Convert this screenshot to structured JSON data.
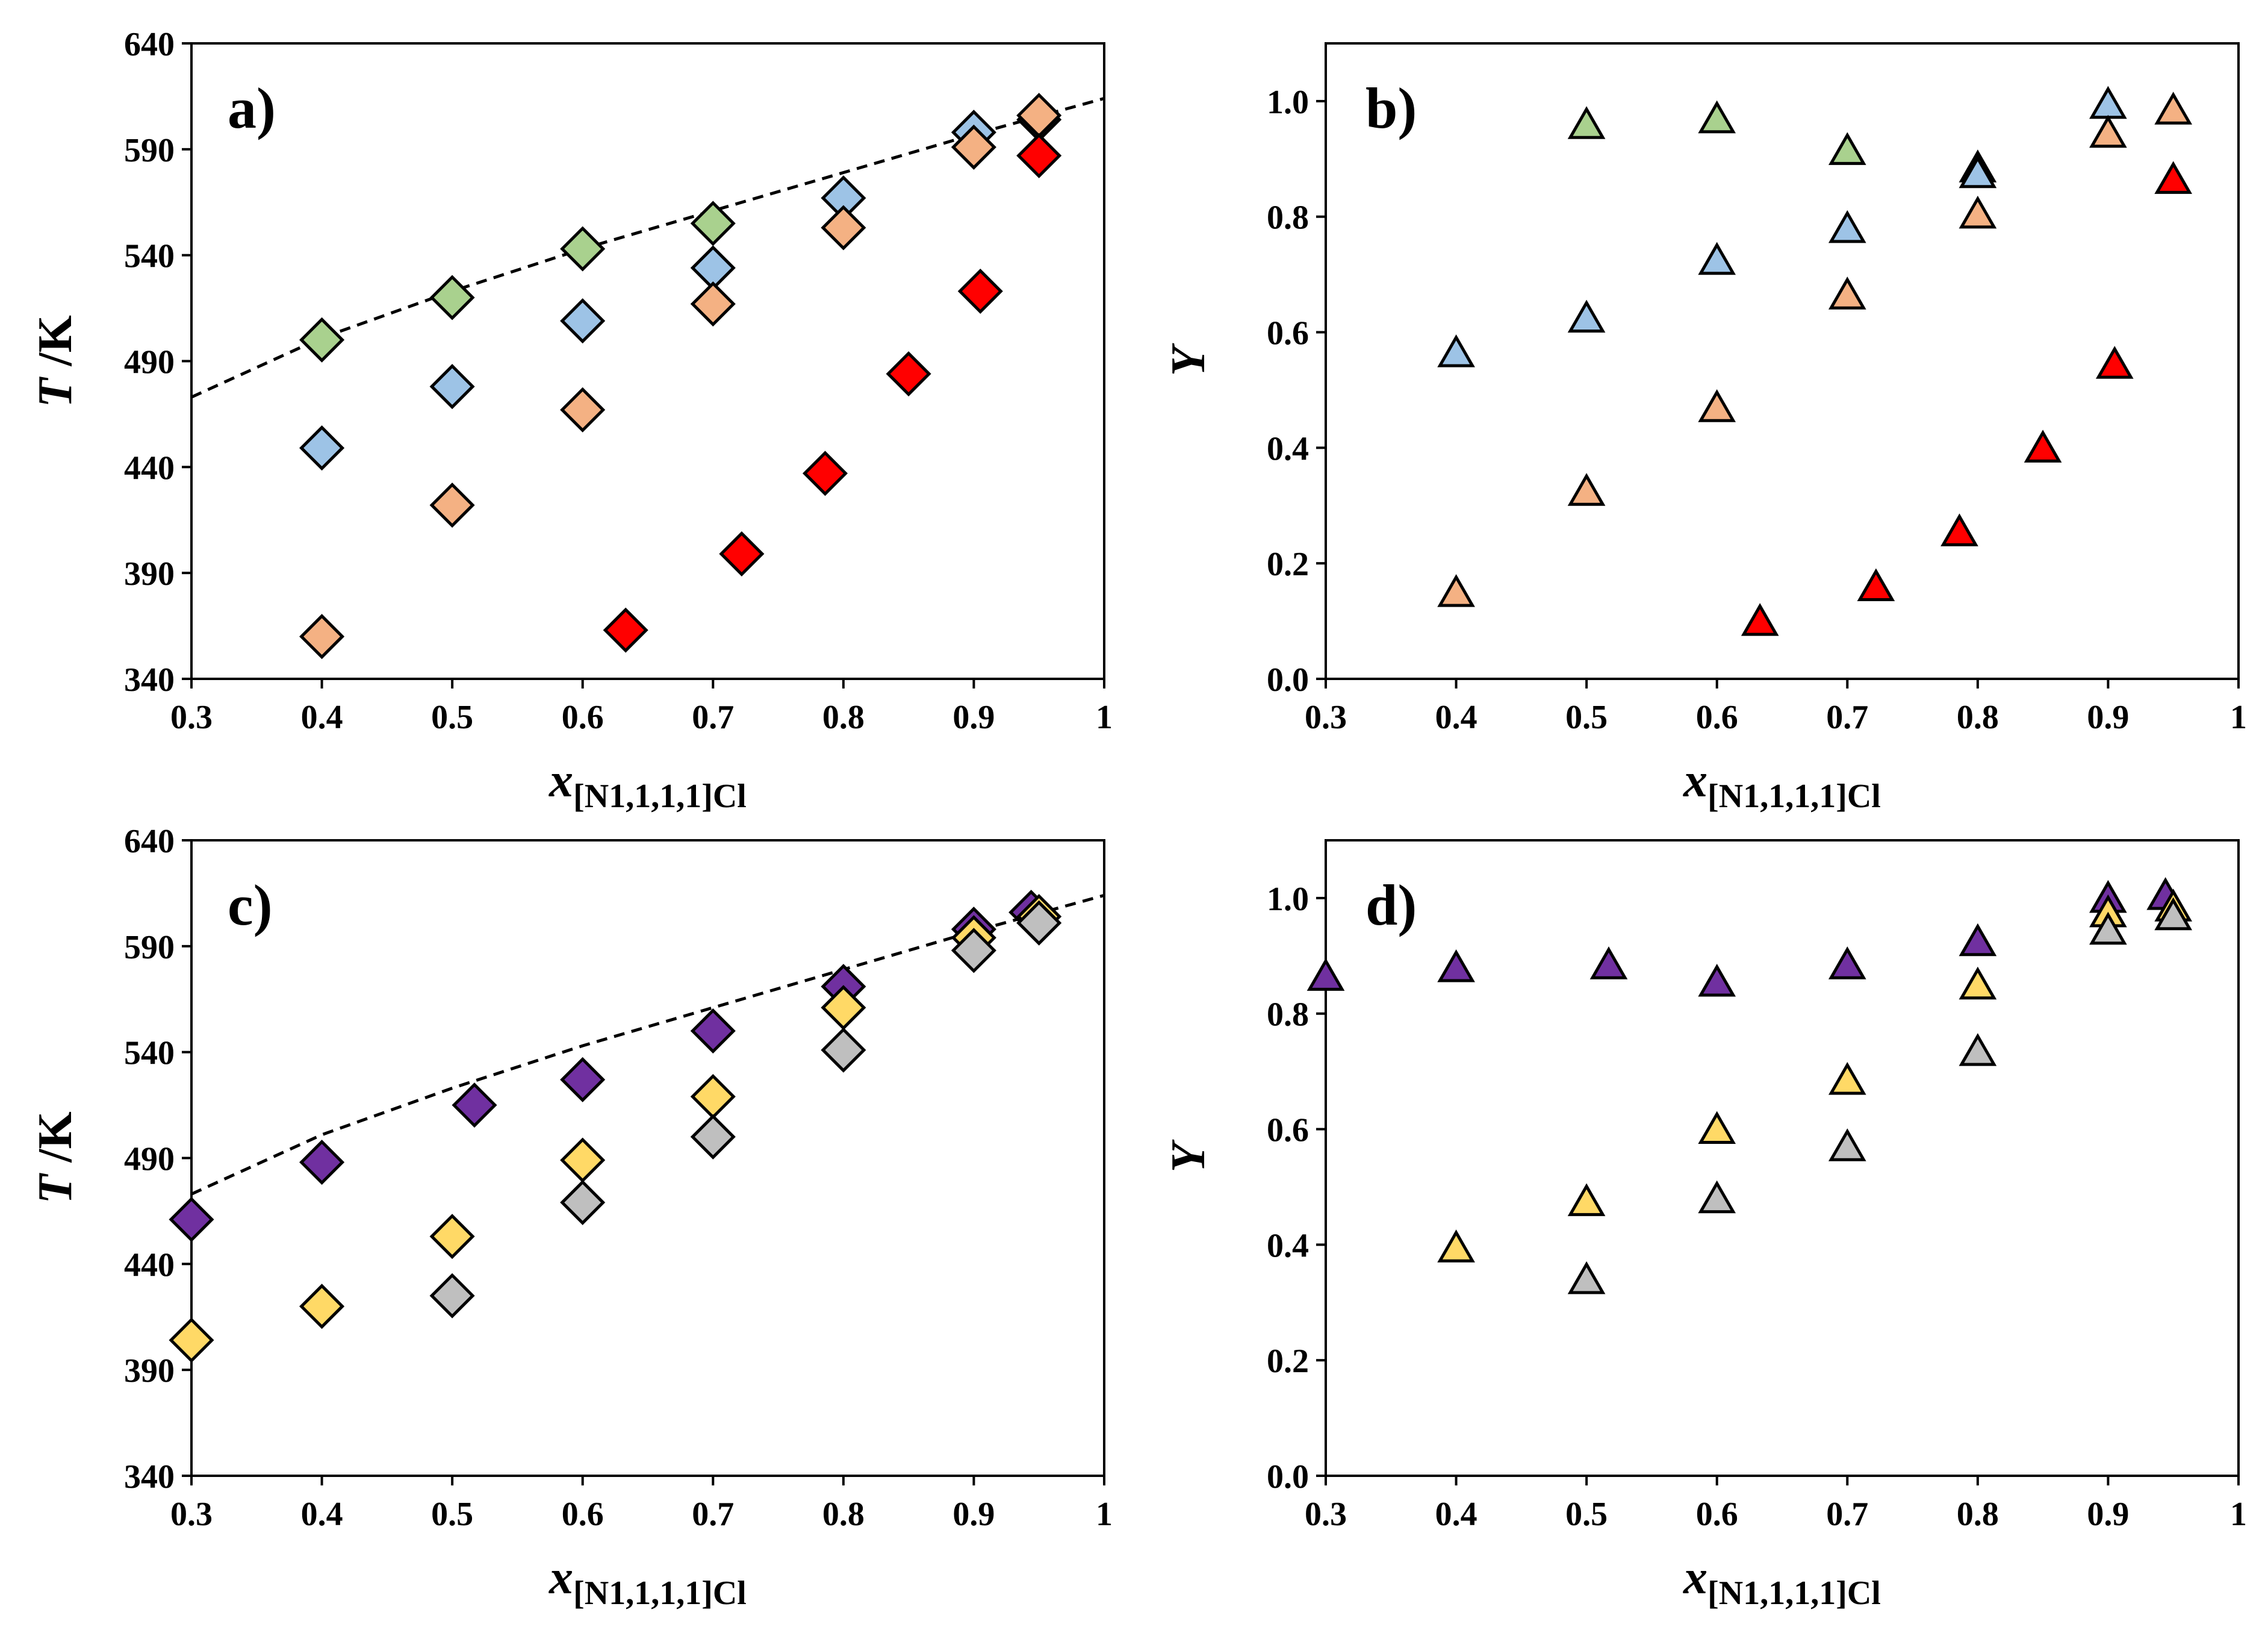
{
  "figure": {
    "panels": [
      {
        "label": "a)",
        "ylabel_italic": "T",
        "ylabel_rest": " /K",
        "xlabel_italic": "x",
        "xlabel_sub": "[N1,1,1,1]Cl"
      },
      {
        "label": "b)",
        "ylabel_italic": "Y",
        "ylabel_rest": "",
        "xlabel_italic": "x",
        "xlabel_sub": "[N1,1,1,1]Cl"
      },
      {
        "label": "c)",
        "ylabel_italic": "T",
        "ylabel_rest": " /K",
        "xlabel_italic": "x",
        "xlabel_sub": "[N1,1,1,1]Cl"
      },
      {
        "label": "d)",
        "ylabel_italic": "Y",
        "ylabel_rest": "",
        "xlabel_italic": "x",
        "xlabel_sub": "[N1,1,1,1]Cl"
      }
    ]
  },
  "chart_data": [
    {
      "panel": "a)",
      "type": "scatter",
      "marker": "diamond",
      "xlabel": "x[N1,1,1,1]Cl",
      "ylabel": "T /K",
      "xlim": [
        0.3,
        1
      ],
      "xticks": [
        0.3,
        0.4,
        0.5,
        0.6,
        0.7,
        0.8,
        0.9,
        1
      ],
      "xtick_labels": [
        "0.3",
        "0.4",
        "0.5",
        "0.6",
        "0.7",
        "0.8",
        "0.9",
        "1"
      ],
      "ylim": [
        340,
        640
      ],
      "yticks": [
        340,
        390,
        440,
        490,
        540,
        590,
        640
      ],
      "ytick_labels": [
        "340",
        "390",
        "440",
        "490",
        "540",
        "590",
        "640"
      ],
      "dashed_curve": {
        "x": [
          0.3,
          0.4,
          0.5,
          0.6,
          0.7,
          0.8,
          0.9,
          1.0
        ],
        "y": [
          473,
          501,
          523,
          543,
          561,
          579,
          597,
          614
        ]
      },
      "series": [
        {
          "color": "#a9d18e",
          "x": [
            0.4,
            0.5,
            0.6,
            0.7
          ],
          "y": [
            500,
            520,
            543,
            555
          ]
        },
        {
          "color": "#9dc3e6",
          "x": [
            0.4,
            0.5,
            0.6,
            0.7,
            0.8,
            0.9,
            0.95
          ],
          "y": [
            449,
            478,
            509,
            534,
            567,
            598,
            604
          ]
        },
        {
          "color": "#f4b183",
          "x": [
            0.4,
            0.5,
            0.6,
            0.7,
            0.8,
            0.9,
            0.95
          ],
          "y": [
            360,
            422,
            467,
            517,
            553,
            591,
            606
          ]
        },
        {
          "color": "#ff0000",
          "x": [
            0.633,
            0.722,
            0.786,
            0.85,
            0.905,
            0.95
          ],
          "y": [
            363,
            399,
            437,
            484,
            523,
            587
          ]
        }
      ]
    },
    {
      "panel": "b)",
      "type": "scatter",
      "marker": "triangle",
      "xlabel": "x[N1,1,1,1]Cl",
      "ylabel": "Y",
      "xlim": [
        0.3,
        1
      ],
      "xticks": [
        0.3,
        0.4,
        0.5,
        0.6,
        0.7,
        0.8,
        0.9,
        1
      ],
      "xtick_labels": [
        "0.3",
        "0.4",
        "0.5",
        "0.6",
        "0.7",
        "0.8",
        "0.9",
        "1"
      ],
      "ylim": [
        0,
        1.1
      ],
      "yticks": [
        0,
        0.2,
        0.4,
        0.6,
        0.8,
        1.0
      ],
      "ytick_labels": [
        "0.0",
        "0.2",
        "0.4",
        "0.6",
        "0.8",
        "1.0"
      ],
      "series": [
        {
          "color": "#a9d18e",
          "x": [
            0.5,
            0.6,
            0.7,
            0.8
          ],
          "y": [
            0.96,
            0.97,
            0.915,
            0.885
          ]
        },
        {
          "color": "#9dc3e6",
          "x": [
            0.4,
            0.5,
            0.6,
            0.7,
            0.8,
            0.9
          ],
          "y": [
            0.565,
            0.625,
            0.725,
            0.78,
            0.875,
            0.995
          ]
        },
        {
          "color": "#f4b183",
          "x": [
            0.4,
            0.5,
            0.6,
            0.7,
            0.8,
            0.9,
            0.95
          ],
          "y": [
            0.15,
            0.325,
            0.47,
            0.665,
            0.805,
            0.945,
            0.985
          ]
        },
        {
          "color": "#ff0000",
          "x": [
            0.633,
            0.722,
            0.786,
            0.85,
            0.905,
            0.95
          ],
          "y": [
            0.1,
            0.16,
            0.255,
            0.4,
            0.545,
            0.865
          ]
        }
      ]
    },
    {
      "panel": "c)",
      "type": "scatter",
      "marker": "diamond",
      "xlabel": "x[N1,1,1,1]Cl",
      "ylabel": "T /K",
      "xlim": [
        0.3,
        1
      ],
      "xticks": [
        0.3,
        0.4,
        0.5,
        0.6,
        0.7,
        0.8,
        0.9,
        1
      ],
      "xtick_labels": [
        "0.3",
        "0.4",
        "0.5",
        "0.6",
        "0.7",
        "0.8",
        "0.9",
        "1"
      ],
      "ylim": [
        340,
        640
      ],
      "yticks": [
        340,
        390,
        440,
        490,
        540,
        590,
        640
      ],
      "ytick_labels": [
        "340",
        "390",
        "440",
        "490",
        "540",
        "590",
        "640"
      ],
      "dashed_curve": {
        "x": [
          0.3,
          0.4,
          0.5,
          0.6,
          0.7,
          0.8,
          0.9,
          1.0
        ],
        "y": [
          473,
          501,
          523,
          543,
          561,
          579,
          597,
          614
        ]
      },
      "series": [
        {
          "color": "#7030a0",
          "x": [
            0.3,
            0.4,
            0.517,
            0.6,
            0.7,
            0.8,
            0.9,
            0.944
          ],
          "y": [
            461,
            488,
            515,
            527,
            550,
            571,
            598,
            606
          ]
        },
        {
          "color": "#ffd966",
          "x": [
            0.3,
            0.4,
            0.5,
            0.6,
            0.7,
            0.8,
            0.9,
            0.95
          ],
          "y": [
            404,
            420,
            453,
            489,
            519,
            561,
            594,
            604
          ]
        },
        {
          "color": "#bfbfbf",
          "x": [
            0.5,
            0.6,
            0.7,
            0.8,
            0.9,
            0.95
          ],
          "y": [
            425,
            469,
            500,
            541,
            588,
            601
          ]
        }
      ]
    },
    {
      "panel": "d)",
      "type": "scatter",
      "marker": "triangle",
      "xlabel": "x[N1,1,1,1]Cl",
      "ylabel": "Y",
      "xlim": [
        0.3,
        1
      ],
      "xticks": [
        0.3,
        0.4,
        0.5,
        0.6,
        0.7,
        0.8,
        0.9,
        1
      ],
      "xtick_labels": [
        "0.3",
        "0.4",
        "0.5",
        "0.6",
        "0.7",
        "0.8",
        "0.9",
        "1"
      ],
      "ylim": [
        0,
        1.1
      ],
      "yticks": [
        0,
        0.2,
        0.4,
        0.6,
        0.8,
        1.0
      ],
      "ytick_labels": [
        "0.0",
        "0.2",
        "0.4",
        "0.6",
        "0.8",
        "1.0"
      ],
      "series": [
        {
          "color": "#7030a0",
          "x": [
            0.3,
            0.4,
            0.517,
            0.6,
            0.7,
            0.8,
            0.9,
            0.944
          ],
          "y": [
            0.865,
            0.88,
            0.885,
            0.855,
            0.885,
            0.925,
            1.0,
            1.005
          ]
        },
        {
          "color": "#ffd966",
          "x": [
            0.4,
            0.5,
            0.6,
            0.7,
            0.8,
            0.9,
            0.95
          ],
          "y": [
            0.395,
            0.475,
            0.6,
            0.685,
            0.85,
            0.975,
            0.985
          ]
        },
        {
          "color": "#bfbfbf",
          "x": [
            0.5,
            0.6,
            0.7,
            0.8,
            0.9,
            0.95
          ],
          "y": [
            0.34,
            0.48,
            0.57,
            0.735,
            0.945,
            0.97
          ]
        }
      ]
    }
  ]
}
